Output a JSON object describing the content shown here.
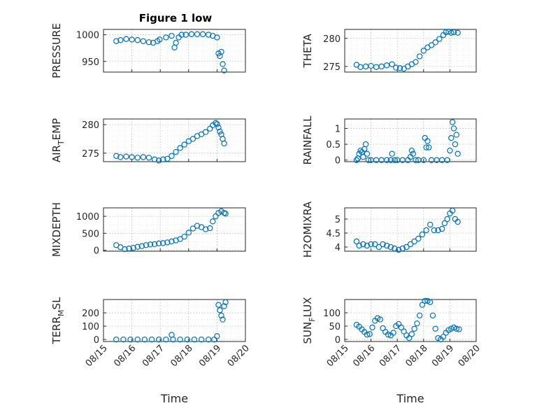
{
  "figure_title": "Figure 1 low",
  "colors": {
    "marker": "#0072BD",
    "axes": "#262626",
    "grid": "#c8c8c8"
  },
  "chart_data": [
    {
      "type": "scatter",
      "name": "pressure",
      "ylabel": "PRESSURE",
      "ylim": [
        930,
        1010
      ],
      "yticks": [
        950,
        1000
      ],
      "xlabel": "",
      "minor_y": [
        960,
        970,
        980,
        990
      ],
      "x_dates": [
        "08/15",
        "08/16",
        "08/17",
        "08/18",
        "08/19",
        "08/20"
      ],
      "xlim": [
        0,
        5
      ],
      "x": [
        0.45,
        0.6,
        0.8,
        1.0,
        1.2,
        1.4,
        1.6,
        1.75,
        1.9,
        1.98,
        2.2,
        2.4,
        2.5,
        2.55,
        2.65,
        2.75,
        2.9,
        3.1,
        3.3,
        3.5,
        3.7,
        3.85,
        4.0,
        4.05,
        4.1,
        4.15,
        4.2,
        4.25
      ],
      "y": [
        988,
        990,
        992,
        991,
        990,
        988,
        986,
        985,
        988,
        991,
        995,
        998,
        976,
        985,
        995,
        1000,
        1000,
        1001,
        1001,
        1001,
        1000,
        998,
        995,
        965,
        960,
        968,
        945,
        933
      ]
    },
    {
      "type": "scatter",
      "name": "theta",
      "ylabel": "THETA",
      "ylim": [
        274,
        281.6
      ],
      "yticks": [
        275,
        280
      ],
      "xlabel": "",
      "minor_y": [
        276,
        277,
        278,
        279
      ],
      "x_dates": [
        "08/15",
        "08/16",
        "08/17",
        "08/18",
        "08/19",
        "08/20"
      ],
      "xlim": [
        0,
        5
      ],
      "x": [
        0.45,
        0.6,
        0.8,
        1.0,
        1.2,
        1.4,
        1.6,
        1.8,
        1.95,
        2.1,
        2.25,
        2.4,
        2.55,
        2.7,
        2.85,
        3.0,
        3.15,
        3.3,
        3.45,
        3.6,
        3.75,
        3.85,
        3.95,
        4.05,
        4.15,
        4.3
      ],
      "y": [
        275.3,
        274.9,
        275.0,
        275.1,
        274.9,
        275.0,
        275.2,
        275.4,
        274.8,
        274.7,
        274.6,
        275.0,
        275.4,
        275.8,
        276.8,
        277.8,
        278.4,
        278.8,
        279.3,
        279.9,
        280.6,
        281.1,
        281.2,
        281.0,
        281.1,
        281.0
      ]
    },
    {
      "type": "scatter",
      "name": "air_temp",
      "ylabel": "AIR_TEMP",
      "ylim": [
        273.5,
        281
      ],
      "yticks": [
        275,
        280
      ],
      "xlabel": "",
      "minor_y": [
        276,
        277,
        278,
        279
      ],
      "x_dates": [
        "08/15",
        "08/16",
        "08/17",
        "08/18",
        "08/19",
        "08/20"
      ],
      "xlim": [
        0,
        5
      ],
      "x": [
        0.45,
        0.6,
        0.8,
        1.0,
        1.2,
        1.4,
        1.6,
        1.8,
        1.95,
        2.1,
        2.25,
        2.4,
        2.55,
        2.7,
        2.85,
        3.0,
        3.15,
        3.3,
        3.45,
        3.6,
        3.75,
        3.85,
        3.95,
        4.0,
        4.05,
        4.1,
        4.15,
        4.2,
        4.25
      ],
      "y": [
        274.5,
        274.3,
        274.4,
        274.3,
        274.2,
        274.3,
        274.2,
        273.9,
        273.7,
        273.9,
        274.0,
        274.5,
        275.2,
        275.9,
        276.5,
        277.1,
        277.5,
        278.0,
        278.3,
        278.7,
        279.3,
        279.9,
        280.3,
        280.1,
        279.5,
        278.8,
        278.3,
        277.5,
        276.7
      ]
    },
    {
      "type": "scatter",
      "name": "rainfall",
      "ylabel": "RAINFALL",
      "ylim": [
        -0.05,
        1.3
      ],
      "yticks": [
        0,
        0.5,
        1
      ],
      "xlabel": "",
      "minor_y": [
        0.25,
        0.75
      ],
      "x_dates": [
        "08/15",
        "08/16",
        "08/17",
        "08/18",
        "08/19",
        "08/20"
      ],
      "xlim": [
        0,
        5
      ],
      "x": [
        0.45,
        0.5,
        0.55,
        0.6,
        0.65,
        0.7,
        0.75,
        0.8,
        0.85,
        0.9,
        1.0,
        1.2,
        1.4,
        1.6,
        1.75,
        1.8,
        1.9,
        2.0,
        2.2,
        2.4,
        2.5,
        2.55,
        2.6,
        2.7,
        2.8,
        3.0,
        3.05,
        3.1,
        3.15,
        3.2,
        3.3,
        3.5,
        3.7,
        3.9,
        4.0,
        4.05,
        4.1,
        4.15,
        4.2,
        4.25,
        4.3
      ],
      "y": [
        0,
        0.05,
        0.2,
        0.3,
        0.25,
        0.1,
        0.35,
        0.5,
        0.2,
        0,
        0,
        0,
        0,
        0,
        0,
        0.2,
        0,
        0,
        0,
        0,
        0.1,
        0.3,
        0.2,
        0,
        0,
        0,
        0.7,
        0.4,
        0.6,
        0.4,
        0,
        0,
        0,
        0,
        0.3,
        0.7,
        1.2,
        1.0,
        0.5,
        0.8,
        0.2
      ]
    },
    {
      "type": "scatter",
      "name": "mixdepth",
      "ylabel": "MIXDEPTH",
      "ylim": [
        -30,
        1250
      ],
      "yticks": [
        0,
        500,
        1000
      ],
      "xlabel": "",
      "minor_y": [
        250,
        750
      ],
      "x_dates": [
        "08/15",
        "08/16",
        "08/17",
        "08/18",
        "08/19",
        "08/20"
      ],
      "xlim": [
        0,
        5
      ],
      "x": [
        0.45,
        0.6,
        0.75,
        0.9,
        1.05,
        1.2,
        1.35,
        1.5,
        1.65,
        1.8,
        1.95,
        2.1,
        2.25,
        2.4,
        2.55,
        2.7,
        2.85,
        3.0,
        3.15,
        3.3,
        3.45,
        3.6,
        3.75,
        3.85,
        3.95,
        4.05,
        4.15,
        4.25,
        4.3
      ],
      "y": [
        150,
        90,
        30,
        50,
        70,
        100,
        120,
        150,
        170,
        180,
        200,
        210,
        230,
        260,
        290,
        330,
        400,
        520,
        640,
        720,
        680,
        620,
        650,
        850,
        1000,
        1100,
        1150,
        1100,
        1080
      ]
    },
    {
      "type": "scatter",
      "name": "h2omixra",
      "ylabel": "H2OMIXRA",
      "ylim": [
        3.85,
        5.4
      ],
      "yticks": [
        4,
        4.5,
        5
      ],
      "xlabel": "",
      "minor_y": [
        4.25,
        4.75
      ],
      "x_dates": [
        "08/15",
        "08/16",
        "08/17",
        "08/18",
        "08/19",
        "08/20"
      ],
      "xlim": [
        0,
        5
      ],
      "x": [
        0.45,
        0.55,
        0.7,
        0.85,
        1.0,
        1.15,
        1.3,
        1.45,
        1.6,
        1.75,
        1.9,
        2.05,
        2.2,
        2.35,
        2.5,
        2.65,
        2.8,
        2.95,
        3.1,
        3.25,
        3.4,
        3.55,
        3.7,
        3.8,
        3.9,
        4.0,
        4.1,
        4.2,
        4.3
      ],
      "y": [
        4.2,
        4.05,
        4.1,
        4.05,
        4.1,
        4.1,
        4.0,
        4.1,
        4.05,
        4.0,
        3.95,
        3.9,
        3.95,
        4.0,
        4.1,
        4.2,
        4.3,
        4.45,
        4.6,
        4.8,
        4.6,
        4.6,
        4.65,
        4.85,
        5.0,
        5.2,
        5.3,
        5.0,
        4.9
      ]
    },
    {
      "type": "scatter",
      "name": "terr_msl",
      "ylabel": "TERR_MSL",
      "ylim": [
        -15,
        300
      ],
      "yticks": [
        0,
        100,
        200
      ],
      "xlabel": "Time",
      "minor_y": [
        50,
        150,
        250
      ],
      "x_dates": [
        "08/15",
        "08/16",
        "08/17",
        "08/18",
        "08/19",
        "08/20"
      ],
      "xlim": [
        0,
        5
      ],
      "x": [
        0.45,
        0.7,
        0.95,
        1.2,
        1.45,
        1.7,
        1.95,
        2.2,
        2.4,
        2.45,
        2.7,
        2.95,
        3.2,
        3.45,
        3.7,
        3.9,
        4.0,
        4.05,
        4.1,
        4.15,
        4.2,
        4.25,
        4.3
      ],
      "y": [
        0,
        0,
        0,
        0,
        0,
        0,
        0,
        0,
        35,
        0,
        0,
        0,
        0,
        0,
        0,
        0,
        25,
        260,
        220,
        180,
        150,
        250,
        280
      ]
    },
    {
      "type": "scatter",
      "name": "sun_flux",
      "ylabel": "SUN_FLUX",
      "ylim": [
        -8,
        150
      ],
      "yticks": [
        0,
        50,
        100
      ],
      "xlabel": "Time",
      "minor_y": [
        25,
        75,
        125
      ],
      "x_dates": [
        "08/15",
        "08/16",
        "08/17",
        "08/18",
        "08/19",
        "08/20"
      ],
      "xlim": [
        0,
        5
      ],
      "x": [
        0.45,
        0.55,
        0.65,
        0.75,
        0.85,
        0.95,
        1.05,
        1.15,
        1.25,
        1.35,
        1.45,
        1.55,
        1.65,
        1.75,
        1.85,
        1.95,
        2.05,
        2.15,
        2.25,
        2.35,
        2.45,
        2.55,
        2.65,
        2.75,
        2.85,
        2.95,
        3.05,
        3.15,
        3.25,
        3.35,
        3.45,
        3.55,
        3.65,
        3.75,
        3.85,
        3.95,
        4.05,
        4.15,
        4.25,
        4.35
      ],
      "y": [
        55,
        48,
        38,
        28,
        18,
        20,
        45,
        70,
        80,
        75,
        42,
        28,
        18,
        15,
        25,
        50,
        58,
        45,
        30,
        15,
        5,
        20,
        40,
        60,
        90,
        130,
        145,
        145,
        140,
        90,
        40,
        5,
        0,
        10,
        25,
        35,
        40,
        45,
        40,
        38
      ]
    }
  ]
}
